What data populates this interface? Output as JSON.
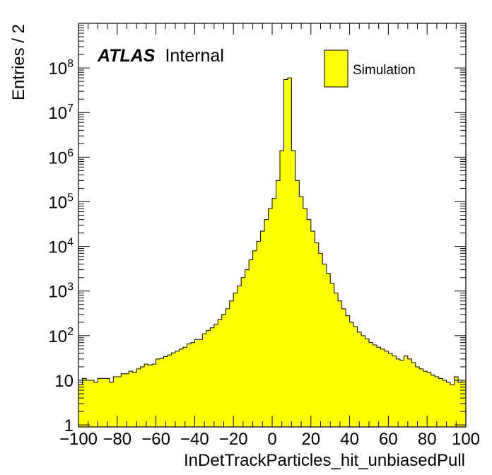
{
  "chart_data": {
    "type": "histogram",
    "title": "",
    "xlabel": "InDetTrackParticles_hit_unbiasedPull",
    "ylabel": "Entries / 2",
    "xlim": [
      -100,
      100
    ],
    "ylim": [
      0.9,
      1000000000
    ],
    "yscale": "log",
    "bin_width": 2,
    "x_tick_labels": [
      "−100",
      "−80",
      "−60",
      "−40",
      "−20",
      "0",
      "20",
      "40",
      "60",
      "80",
      "100"
    ],
    "y_tick_labels": [
      {
        "value": 1,
        "base": "1",
        "exp": ""
      },
      {
        "value": 10,
        "base": "10",
        "exp": ""
      },
      {
        "value": 100,
        "base": "10",
        "exp": "2"
      },
      {
        "value": 1000,
        "base": "10",
        "exp": "3"
      },
      {
        "value": 10000,
        "base": "10",
        "exp": "4"
      },
      {
        "value": 100000,
        "base": "10",
        "exp": "5"
      },
      {
        "value": 1000000,
        "base": "10",
        "exp": "6"
      },
      {
        "value": 10000000,
        "base": "10",
        "exp": "7"
      },
      {
        "value": 100000000,
        "base": "10",
        "exp": "8"
      }
    ],
    "series": [
      {
        "name": "Simulation",
        "color": "#ffff00",
        "edges_start": -100,
        "values": [
          8,
          11,
          10,
          10,
          9,
          11,
          11,
          11,
          9,
          12,
          12,
          14,
          14,
          16,
          15,
          18,
          20,
          23,
          22,
          23,
          30,
          31,
          34,
          37,
          41,
          45,
          50,
          55,
          65,
          70,
          82,
          82,
          110,
          130,
          150,
          180,
          230,
          300,
          400,
          600,
          900,
          1300,
          2000,
          3000,
          5000,
          8000,
          13000,
          22000,
          40000,
          70000,
          120000,
          300000,
          1400000,
          55000000,
          60000000,
          1400000,
          300000,
          130000,
          70000,
          40000,
          22000,
          12000,
          7000,
          4000,
          2500,
          1500,
          900,
          600,
          400,
          280,
          200,
          160,
          120,
          100,
          85,
          70,
          62,
          55,
          50,
          45,
          40,
          35,
          30,
          28,
          35,
          30,
          25,
          20,
          18,
          16,
          15,
          13,
          12,
          11,
          10,
          9,
          8,
          12,
          9,
          10
        ]
      }
    ],
    "legend": {
      "placement": "top-right",
      "entries": [
        "Simulation"
      ]
    },
    "annotations": {
      "experiment": "ATLAS",
      "status": "Internal"
    }
  }
}
